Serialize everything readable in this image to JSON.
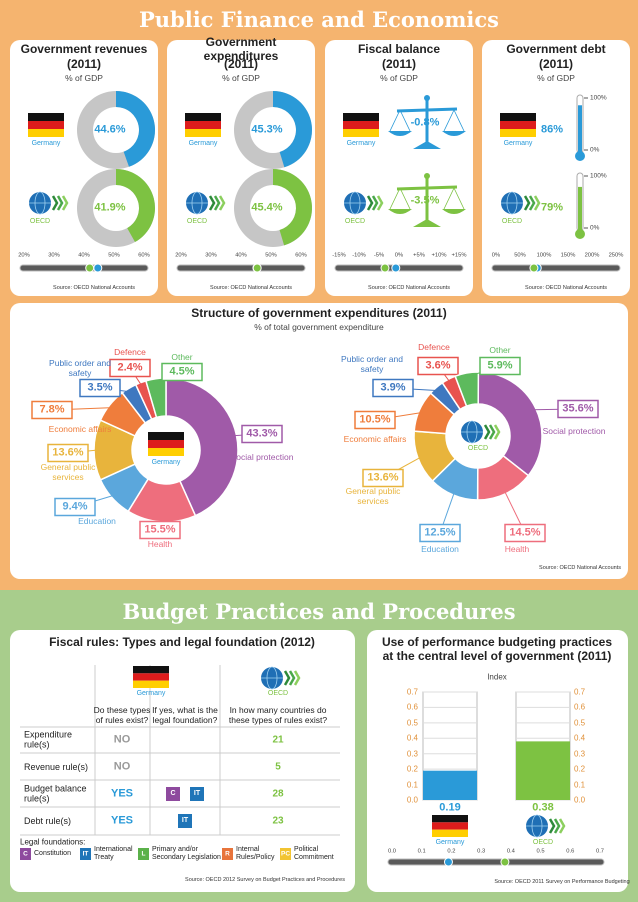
{
  "header": {
    "title": "Public Finance and Economics"
  },
  "indicators": [
    {
      "type": "donut",
      "title": "Government revenues",
      "year": "(2011)",
      "unit": "% of GDP",
      "names": [
        "Germany",
        "OECD"
      ],
      "values": [
        44.6,
        41.9
      ],
      "value_labels": [
        "44.6%",
        "41.9%"
      ],
      "colors": [
        "#2a9ad8",
        "#7dc242"
      ],
      "xlim": [
        20,
        60
      ],
      "xticks": [
        {
          "value": 20,
          "label": "20%"
        },
        {
          "value": 30,
          "label": "30%"
        },
        {
          "value": 40,
          "label": "40%"
        },
        {
          "value": 50,
          "label": "50%"
        },
        {
          "value": 60,
          "label": "60%"
        }
      ],
      "source": "Source: OECD National Accounts"
    },
    {
      "type": "donut",
      "title": "Government expenditures",
      "year": "(2011)",
      "unit": "% of GDP",
      "names": [
        "Germany",
        "OECD"
      ],
      "values": [
        45.3,
        45.4
      ],
      "value_labels": [
        "45.3%",
        "45.4%"
      ],
      "colors": [
        "#2a9ad8",
        "#7dc242"
      ],
      "xlim": [
        20,
        60
      ],
      "xticks": [
        {
          "value": 20,
          "label": "20%"
        },
        {
          "value": 30,
          "label": "30%"
        },
        {
          "value": 40,
          "label": "40%"
        },
        {
          "value": 50,
          "label": "50%"
        },
        {
          "value": 60,
          "label": "60%"
        }
      ],
      "source": "Source: OECD National Accounts"
    },
    {
      "type": "balance",
      "title": "Fiscal balance",
      "year": "(2011)",
      "unit": "% of GDP",
      "names": [
        "Germany",
        "OECD"
      ],
      "values": [
        -0.8,
        -3.5
      ],
      "value_labels": [
        "-0.8%",
        "-3.5%"
      ],
      "colors": [
        "#2a9ad8",
        "#7dc242"
      ],
      "xlim": [
        -15,
        15
      ],
      "xticks": [
        {
          "value": -15,
          "label": "-15%"
        },
        {
          "value": -10,
          "label": "-10%"
        },
        {
          "value": -5,
          "label": "-5%"
        },
        {
          "value": 0,
          "label": "0%"
        },
        {
          "value": 5,
          "label": "+5%"
        },
        {
          "value": 10,
          "label": "+10%"
        },
        {
          "value": 15,
          "label": "+15%"
        }
      ],
      "source": "Source: OECD National Accounts"
    },
    {
      "type": "thermometer",
      "title": "Government debt",
      "year": "(2011)",
      "unit": "% of GDP",
      "names": [
        "Germany",
        "OECD"
      ],
      "values": [
        86,
        79
      ],
      "value_labels": [
        "86%",
        "79%"
      ],
      "colors": [
        "#2a9ad8",
        "#7dc242"
      ],
      "gauge_ticks": [
        {
          "value": 100,
          "label": "100%"
        },
        {
          "value": 0,
          "label": "0%"
        }
      ],
      "xlim": [
        0,
        250
      ],
      "xticks": [
        {
          "value": 0,
          "label": "0%"
        },
        {
          "value": 50,
          "label": "50%"
        },
        {
          "value": 100,
          "label": "100%"
        },
        {
          "value": 150,
          "label": "150%"
        },
        {
          "value": 200,
          "label": "200%"
        },
        {
          "value": 250,
          "label": "250%"
        }
      ],
      "source": "Source: OECD National Accounts"
    }
  ],
  "structure": {
    "type": "donut",
    "title": "Structure of government expenditures (2011)",
    "subtitle": "% of total government expenditure",
    "categories": [
      "Social protection",
      "Health",
      "Education",
      "General public services",
      "Economic affairs",
      "Public order and safety",
      "Defence",
      "Other"
    ],
    "colors": [
      "#a05aa8",
      "#ee6e7d",
      "#5ba7dc",
      "#e8b43c",
      "#ef7d3c",
      "#3f78c0",
      "#e8534f",
      "#5dba5d"
    ],
    "series": [
      {
        "name": "Germany",
        "values": [
          43.3,
          15.5,
          9.4,
          13.6,
          7.8,
          3.5,
          2.4,
          4.5
        ],
        "value_labels": [
          "43.3%",
          "15.5%",
          "9.4%",
          "13.6%",
          "7.8%",
          "3.5%",
          "2.4%",
          "4.5%"
        ]
      },
      {
        "name": "OECD",
        "values": [
          35.6,
          14.5,
          12.5,
          13.6,
          10.5,
          3.9,
          3.6,
          5.9
        ],
        "value_labels": [
          "35.6%",
          "14.5%",
          "12.5%",
          "13.6%",
          "10.5%",
          "3.9%",
          "3.6%",
          "5.9%"
        ]
      }
    ],
    "source": "Source: OECD National Accounts"
  },
  "budget_header": {
    "title": "Budget Practices and Procedures"
  },
  "fiscal_rules": {
    "title": "Fiscal rules: Types and legal foundation (2012)",
    "germany": "Germany",
    "oecd": "OECD",
    "columns": [
      "Do these types of rules exist?",
      "If yes, what is the legal foundation?",
      "In how many countries do these types of rules exist?"
    ],
    "rows": [
      {
        "label": "Expenditure rule(s)",
        "exists": "NO",
        "foundations": [],
        "countries": 21
      },
      {
        "label": "Revenue rule(s)",
        "exists": "NO",
        "foundations": [],
        "countries": 5
      },
      {
        "label": "Budget balance rule(s)",
        "exists": "YES",
        "foundations": [
          "C",
          "IT"
        ],
        "countries": 28
      },
      {
        "label": "Debt rule(s)",
        "exists": "YES",
        "foundations": [
          "IT"
        ],
        "countries": 23
      }
    ],
    "legend_title": "Legal foundations:",
    "legend": [
      {
        "code": "C",
        "label": "Constitution",
        "color": "#8e4a9e"
      },
      {
        "code": "IT",
        "label": "International Treaty",
        "color": "#1f75b8"
      },
      {
        "code": "L",
        "label": "Primary and/or Secondary Legislation",
        "color": "#5bb14a"
      },
      {
        "code": "R",
        "label": "Internal Rules/Policy",
        "color": "#e8743b"
      },
      {
        "code": "PC",
        "label": "Political Commitment",
        "color": "#f2c431"
      }
    ],
    "source": "Source: OECD 2012 Survey on Budget Practices and Procedures"
  },
  "performance": {
    "type": "bar",
    "title": "Use of performance budgeting practices at the central level of government (2011)",
    "axis_label": "Index",
    "names": [
      "Germany",
      "OECD"
    ],
    "values": [
      0.19,
      0.38
    ],
    "colors": [
      "#2a9ad8",
      "#7dc242"
    ],
    "ylim": [
      0,
      0.7
    ],
    "yticks": [
      {
        "value": 0,
        "label": "0.0"
      },
      0.1,
      0.2,
      0.3,
      0.4,
      0.5,
      0.6,
      0.7
    ],
    "xlim": [
      0,
      0.7
    ],
    "xticks": [
      {
        "value": 0,
        "label": "0.0"
      },
      0.1,
      0.2,
      0.3,
      0.4,
      0.5,
      0.6,
      0.7
    ],
    "source": "Source: OECD 2011 Survey on Performance Budgeting"
  }
}
